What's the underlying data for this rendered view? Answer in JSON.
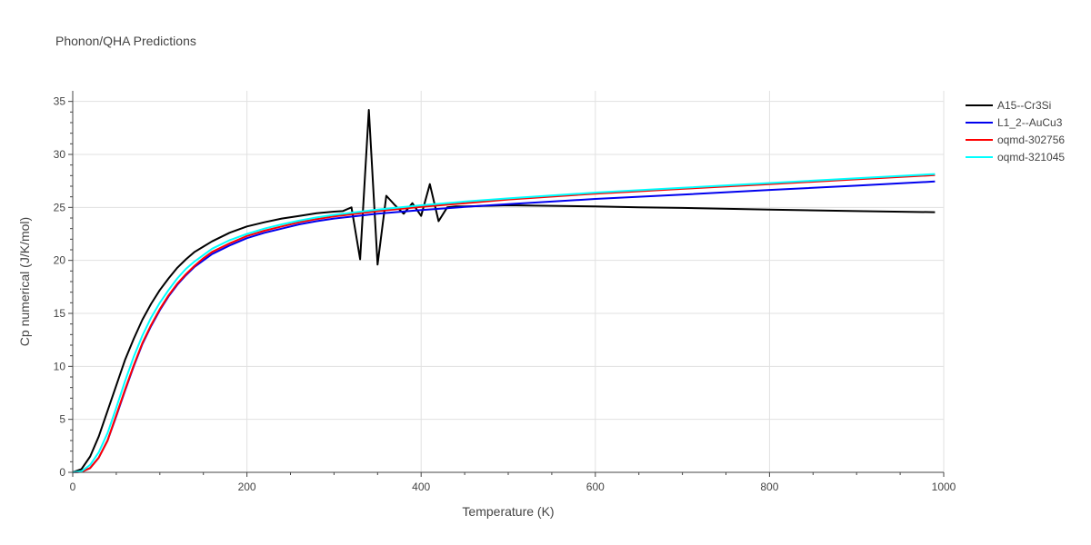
{
  "chart_data": {
    "type": "line",
    "title": "Phonon/QHA Predictions",
    "xlabel": "Temperature (K)",
    "ylabel": "Cp numerical (J/K/mol)",
    "xlim": [
      0,
      1000
    ],
    "ylim": [
      0,
      36
    ],
    "xticks": [
      0,
      200,
      400,
      600,
      800,
      1000
    ],
    "yticks": [
      0,
      5,
      10,
      15,
      20,
      25,
      30,
      35
    ],
    "grid": true,
    "legend_position": "top-right",
    "series": [
      {
        "name": "A15--Cr3Si",
        "color": "#000000",
        "x": [
          0,
          10,
          20,
          30,
          40,
          50,
          60,
          70,
          80,
          90,
          100,
          110,
          120,
          130,
          140,
          150,
          160,
          180,
          200,
          220,
          240,
          260,
          280,
          300,
          310,
          320,
          330,
          340,
          350,
          360,
          370,
          380,
          390,
          400,
          410,
          420,
          430,
          440,
          450,
          500,
          550,
          600,
          650,
          700,
          800,
          900,
          990
        ],
        "y": [
          0,
          0.3,
          1.5,
          3.4,
          5.8,
          8.2,
          10.6,
          12.6,
          14.4,
          15.9,
          17.2,
          18.3,
          19.3,
          20.1,
          20.8,
          21.3,
          21.8,
          22.6,
          23.2,
          23.6,
          23.95,
          24.2,
          24.45,
          24.6,
          24.65,
          25.0,
          20.1,
          34.2,
          19.6,
          26.1,
          25.2,
          24.4,
          25.4,
          24.2,
          27.2,
          23.7,
          25.0,
          25.1,
          25.1,
          25.2,
          25.15,
          25.1,
          25.0,
          24.95,
          24.8,
          24.65,
          24.55
        ]
      },
      {
        "name": "L1_2--AuCu3",
        "color": "#0000ee",
        "x": [
          0,
          10,
          20,
          30,
          40,
          50,
          60,
          70,
          80,
          90,
          100,
          110,
          120,
          130,
          140,
          150,
          160,
          180,
          200,
          220,
          240,
          260,
          280,
          300,
          350,
          400,
          450,
          500,
          600,
          700,
          800,
          900,
          990
        ],
        "y": [
          0,
          0.05,
          0.4,
          1.4,
          3.0,
          5.3,
          7.7,
          10.0,
          12.1,
          13.8,
          15.3,
          16.6,
          17.7,
          18.6,
          19.4,
          20.0,
          20.6,
          21.4,
          22.1,
          22.6,
          23.0,
          23.4,
          23.7,
          23.95,
          24.4,
          24.75,
          25.05,
          25.3,
          25.8,
          26.2,
          26.65,
          27.05,
          27.45
        ]
      },
      {
        "name": "oqmd-302756",
        "color": "#ff0000",
        "x": [
          0,
          10,
          20,
          30,
          40,
          50,
          60,
          70,
          80,
          90,
          100,
          110,
          120,
          130,
          140,
          150,
          160,
          180,
          200,
          220,
          240,
          260,
          280,
          300,
          350,
          400,
          450,
          500,
          600,
          700,
          800,
          900,
          990
        ],
        "y": [
          0,
          0.05,
          0.4,
          1.4,
          3.0,
          5.4,
          7.8,
          10.1,
          12.2,
          13.9,
          15.4,
          16.7,
          17.8,
          18.7,
          19.5,
          20.2,
          20.8,
          21.6,
          22.3,
          22.8,
          23.2,
          23.6,
          23.9,
          24.15,
          24.65,
          25.05,
          25.4,
          25.75,
          26.3,
          26.75,
          27.2,
          27.65,
          28.05
        ]
      },
      {
        "name": "oqmd-321045",
        "color": "#00ffff",
        "x": [
          0,
          10,
          20,
          30,
          40,
          50,
          60,
          70,
          80,
          90,
          100,
          110,
          120,
          130,
          140,
          150,
          160,
          180,
          200,
          220,
          240,
          260,
          280,
          300,
          350,
          400,
          450,
          500,
          600,
          700,
          800,
          900,
          990
        ],
        "y": [
          0,
          0.1,
          0.7,
          1.9,
          3.7,
          6.1,
          8.6,
          10.9,
          12.9,
          14.6,
          16.0,
          17.2,
          18.3,
          19.2,
          19.9,
          20.5,
          21.1,
          21.9,
          22.5,
          23.0,
          23.4,
          23.75,
          24.05,
          24.3,
          24.8,
          25.2,
          25.55,
          25.85,
          26.4,
          26.85,
          27.3,
          27.75,
          28.15
        ]
      }
    ]
  }
}
